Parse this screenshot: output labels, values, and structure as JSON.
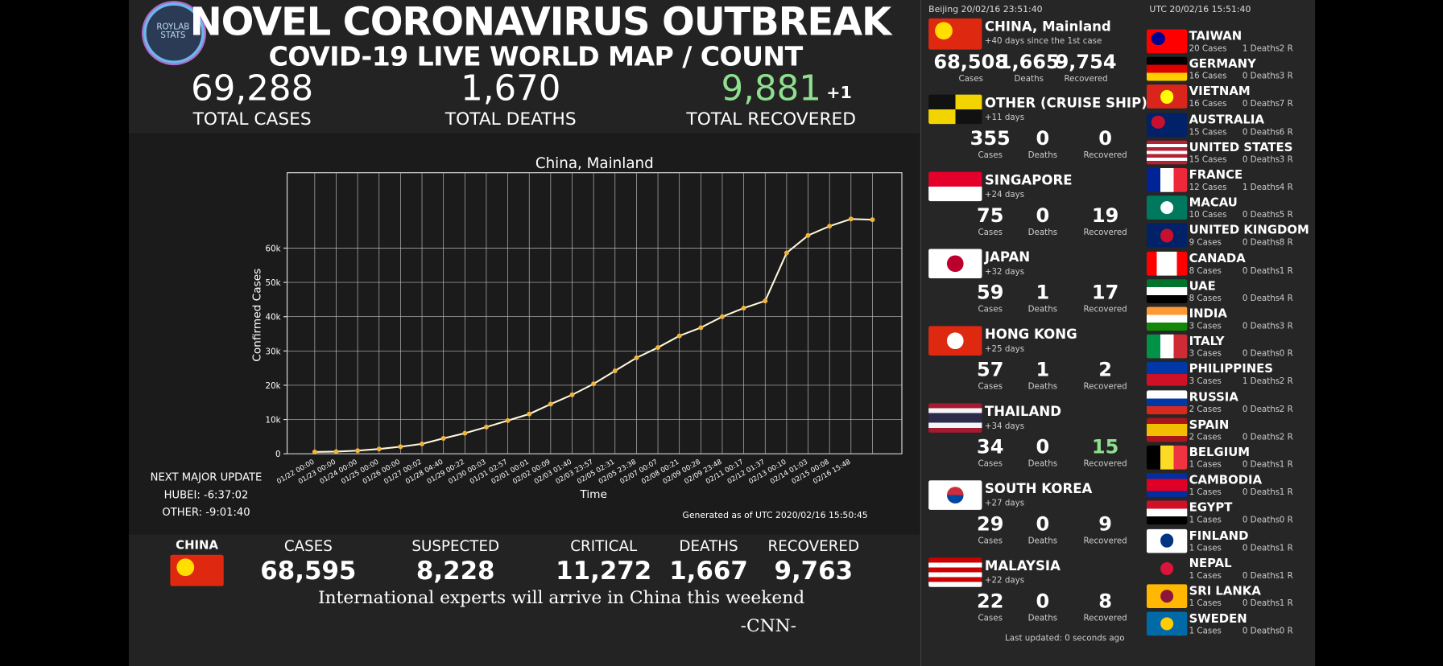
{
  "header": {
    "logo": "ROYLAB STATS",
    "title": "NOVEL CORONAVIRUS OUTBREAK",
    "subtitle": "COVID-19 LIVE WORLD MAP / COUNT"
  },
  "totals": [
    {
      "value": "69,288",
      "label": "TOTAL CASES"
    },
    {
      "value": "1,670",
      "label": "TOTAL DEATHS"
    },
    {
      "value": "9,881",
      "change": "+1",
      "label": "TOTAL RECOVERED"
    }
  ],
  "chart_data": {
    "type": "line",
    "title": "China, Mainland",
    "xlabel": "Time",
    "ylabel": "Confirmed Cases",
    "footnote": "Generated as of UTC 2020/02/16 15:50:45",
    "categories": [
      "01/22 00:00",
      "01/23 00:00",
      "01/24 00:00",
      "01/25 00:00",
      "01/26 00:00",
      "01/27 00:02",
      "01/28 04:40",
      "01/29 00:22",
      "01/30 00:03",
      "01/31 02:57",
      "02/01 00:01",
      "02/02 00:09",
      "02/03 01:40",
      "02/03 23:57",
      "02/05 02:31",
      "02/05 23:38",
      "02/07 00:07",
      "02/08 00:21",
      "02/09 00:28",
      "02/09 23:48",
      "02/11 00:17",
      "02/12 01:37",
      "02/13 00:10",
      "02/14 01:03",
      "02/15 00:08",
      "02/16 15:48",
      null
    ],
    "values": [
      548,
      643,
      920,
      1406,
      2075,
      2877,
      4500,
      6000,
      7800,
      9700,
      11600,
      14500,
      17200,
      20400,
      24200,
      28000,
      31000,
      34400,
      36800,
      40000,
      42500,
      44600,
      58600,
      63700,
      66400,
      68500,
      68300
    ],
    "color": "#fff8dc",
    "marker_color": "#f2b53a",
    "ylim": [
      0,
      82000
    ],
    "yticks": [
      0,
      {
        "value": 10000,
        "label": "10k"
      },
      {
        "value": 20000,
        "label": "20k"
      },
      {
        "value": 30000,
        "label": "30k"
      },
      {
        "value": 40000,
        "label": "40k"
      },
      {
        "value": 50000,
        "label": "50k"
      },
      {
        "value": 60000,
        "label": "60k"
      }
    ],
    "grid": true
  },
  "next_update": {
    "title": "NEXT MAJOR UPDATE",
    "lines": [
      "HUBEI: -6:37:02",
      "OTHER: -9:01:40"
    ]
  },
  "china_summary": {
    "name": "CHINA",
    "stats": [
      {
        "label": "CASES",
        "value": "68,595"
      },
      {
        "label": "SUSPECTED",
        "value": "8,228"
      },
      {
        "label": "CRITICAL",
        "value": "11,272"
      },
      {
        "label": "DEATHS",
        "value": "1,667"
      },
      {
        "label": "RECOVERED",
        "value": "9,763"
      }
    ]
  },
  "headline": "International experts will arrive in China this weekend",
  "source": "-CNN-",
  "clocks": {
    "beijing": "Beijing 20/02/16 23:51:40",
    "utc": "UTC 20/02/16 15:51:40"
  },
  "stat_labels": [
    "Cases",
    "Deaths",
    "Recovered"
  ],
  "featured": [
    {
      "name": "CHINA, Mainland",
      "days": "+40 days since the 1st case",
      "cases": "68,508",
      "deaths": "1,665",
      "recovered": "9,754"
    },
    {
      "name": "OTHER (CRUISE SHIP)",
      "days": "+11 days",
      "cases": "355",
      "deaths": "0",
      "recovered": "0"
    },
    {
      "name": "SINGAPORE",
      "days": "+24 days",
      "cases": "75",
      "deaths": "0",
      "recovered": "19"
    },
    {
      "name": "JAPAN",
      "days": "+32 days",
      "cases": "59",
      "deaths": "1",
      "recovered": "17"
    },
    {
      "name": "HONG KONG",
      "days": "+25 days",
      "cases": "57",
      "deaths": "1",
      "recovered": "2"
    },
    {
      "name": "THAILAND",
      "days": "+34 days",
      "cases": "34",
      "deaths": "0",
      "recovered": "15"
    },
    {
      "name": "SOUTH KOREA",
      "days": "+27 days",
      "cases": "29",
      "deaths": "0",
      "recovered": "9"
    },
    {
      "name": "MALAYSIA",
      "days": "+22 days",
      "cases": "22",
      "deaths": "0",
      "recovered": "8"
    }
  ],
  "others": [
    {
      "name": "TAIWAN",
      "cases": "20 Cases",
      "deaths": "1 Deaths",
      "recovered": "2 R"
    },
    {
      "name": "GERMANY",
      "cases": "16 Cases",
      "deaths": "0 Deaths",
      "recovered": "3 R"
    },
    {
      "name": "VIETNAM",
      "cases": "16 Cases",
      "deaths": "0 Deaths",
      "recovered": "7 R"
    },
    {
      "name": "AUSTRALIA",
      "cases": "15 Cases",
      "deaths": "0 Deaths",
      "recovered": "6 R"
    },
    {
      "name": "UNITED STATES",
      "cases": "15 Cases",
      "deaths": "0 Deaths",
      "recovered": "3 R"
    },
    {
      "name": "FRANCE",
      "cases": "12 Cases",
      "deaths": "1 Deaths",
      "recovered": "4 R"
    },
    {
      "name": "MACAU",
      "cases": "10 Cases",
      "deaths": "0 Deaths",
      "recovered": "5 R"
    },
    {
      "name": "UNITED KINGDOM",
      "cases": "9 Cases",
      "deaths": "0 Deaths",
      "recovered": "8 R"
    },
    {
      "name": "CANADA",
      "cases": "8 Cases",
      "deaths": "0 Deaths",
      "recovered": "1 R"
    },
    {
      "name": "UAE",
      "cases": "8 Cases",
      "deaths": "0 Deaths",
      "recovered": "4 R"
    },
    {
      "name": "INDIA",
      "cases": "3 Cases",
      "deaths": "0 Deaths",
      "recovered": "3 R"
    },
    {
      "name": "ITALY",
      "cases": "3 Cases",
      "deaths": "0 Deaths",
      "recovered": "0 R"
    },
    {
      "name": "PHILIPPINES",
      "cases": "3 Cases",
      "deaths": "1 Deaths",
      "recovered": "2 R"
    },
    {
      "name": "RUSSIA",
      "cases": "2 Cases",
      "deaths": "0 Deaths",
      "recovered": "2 R"
    },
    {
      "name": "SPAIN",
      "cases": "2 Cases",
      "deaths": "0 Deaths",
      "recovered": "2 R"
    },
    {
      "name": "BELGIUM",
      "cases": "1 Cases",
      "deaths": "0 Deaths",
      "recovered": "1 R"
    },
    {
      "name": "CAMBODIA",
      "cases": "1 Cases",
      "deaths": "0 Deaths",
      "recovered": "1 R"
    },
    {
      "name": "EGYPT",
      "cases": "1 Cases",
      "deaths": "0 Deaths",
      "recovered": "0 R"
    },
    {
      "name": "FINLAND",
      "cases": "1 Cases",
      "deaths": "0 Deaths",
      "recovered": "1 R"
    },
    {
      "name": "NEPAL",
      "cases": "1 Cases",
      "deaths": "0 Deaths",
      "recovered": "1 R"
    },
    {
      "name": "SRI LANKA",
      "cases": "1 Cases",
      "deaths": "0 Deaths",
      "recovered": "1 R"
    },
    {
      "name": "SWEDEN",
      "cases": "1 Cases",
      "deaths": "0 Deaths",
      "recovered": "0 R"
    }
  ],
  "last_updated": "Last updated: 0 seconds ago"
}
